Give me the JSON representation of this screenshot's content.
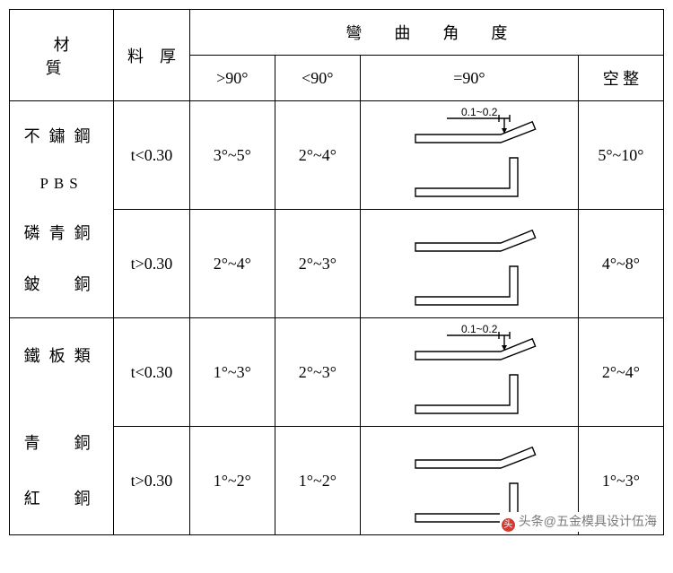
{
  "header": {
    "material": "材　質",
    "thickness": "料　厚",
    "bend_title": "彎　　曲　　角　　度",
    "cols": {
      "gt90": ">90°",
      "lt90": "<90°",
      "eq90": "=90°",
      "adj": "空 整"
    }
  },
  "groups": [
    {
      "material_lines": [
        "不鏽鋼",
        "PBS",
        "磷青銅",
        "鈹　銅"
      ],
      "rows": [
        {
          "thickness_symbol": "t<0.30",
          "gt90": "3°~5°",
          "lt90": "2°~4°",
          "adj": "5°~10°",
          "diagram": {
            "show_dim": true,
            "dim_label": "0.1~0.2"
          }
        },
        {
          "thickness_symbol": "t>0.30",
          "gt90": "2°~4°",
          "lt90": "2°~3°",
          "adj": "4°~8°",
          "diagram": {
            "show_dim": false
          }
        }
      ]
    },
    {
      "material_lines": [
        "鐵板類",
        "",
        "青　銅",
        "紅　銅"
      ],
      "rows": [
        {
          "thickness_symbol": "t<0.30",
          "gt90": "1°~3°",
          "lt90": "2°~3°",
          "adj": "2°~4°",
          "diagram": {
            "show_dim": true,
            "dim_label": "0.1~0.2"
          }
        },
        {
          "thickness_symbol": "t>0.30",
          "gt90": "1°~2°",
          "lt90": "1°~2°",
          "adj": "1°~3°",
          "diagram": {
            "show_dim": false
          }
        }
      ]
    }
  ],
  "watermark": "头条@五金模具设计伍海",
  "style": {
    "stroke": "#000000",
    "stroke_w": 1.4,
    "dim_font": 12
  }
}
